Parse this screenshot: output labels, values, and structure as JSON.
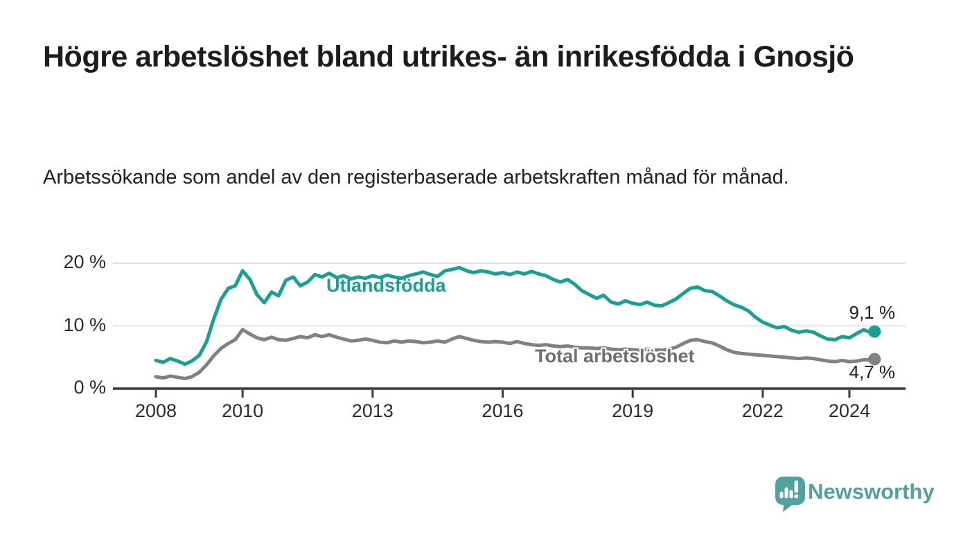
{
  "header": {
    "title": "Högre arbetslöshet bland utrikes- än inrikesfödda i Gnosjö",
    "subtitle": "Arbetssökande som andel av den registerbaserade arbetskraften månad för månad."
  },
  "chart_data": {
    "type": "line",
    "title": "Högre arbetslöshet bland utrikes- än inrikesfödda i Gnosjö",
    "subtitle": "Arbetssökande som andel av den registerbaserade arbetskraften månad för månad.",
    "unit": "%",
    "grid": "horizontal",
    "legend_position": "inline-labels",
    "x_axis": {
      "range": [
        2007.0,
        2025.3
      ],
      "ticks": [
        2008,
        2010,
        2013,
        2016,
        2019,
        2022,
        2024
      ]
    },
    "y_axis": {
      "range": [
        0,
        24
      ],
      "ticks": [
        {
          "value": 20,
          "label": "20 %"
        },
        {
          "value": 10,
          "label": "10 %"
        },
        {
          "value": 0,
          "label": "0 %"
        }
      ]
    },
    "series": [
      {
        "name": "Utlandsfödda",
        "color": "#16A192",
        "label_color": "#16A192",
        "end_label": "9,1 %",
        "end_value": 9.1,
        "points": [
          [
            2008,
            4.5
          ],
          [
            2008.17,
            4.2
          ],
          [
            2008.33,
            4.8
          ],
          [
            2008.5,
            4.4
          ],
          [
            2008.67,
            3.9
          ],
          [
            2008.83,
            4.4
          ],
          [
            2009,
            5.3
          ],
          [
            2009.17,
            7.5
          ],
          [
            2009.33,
            11
          ],
          [
            2009.5,
            14.2
          ],
          [
            2009.67,
            16
          ],
          [
            2009.83,
            16.4
          ],
          [
            2010,
            18.8
          ],
          [
            2010.17,
            17.4
          ],
          [
            2010.33,
            15
          ],
          [
            2010.5,
            13.7
          ],
          [
            2010.67,
            15.4
          ],
          [
            2010.83,
            14.8
          ],
          [
            2011,
            17.3
          ],
          [
            2011.17,
            17.8
          ],
          [
            2011.33,
            16.4
          ],
          [
            2011.5,
            17
          ],
          [
            2011.67,
            18.2
          ],
          [
            2011.83,
            17.8
          ],
          [
            2012,
            18.4
          ],
          [
            2012.17,
            17.7
          ],
          [
            2012.33,
            18
          ],
          [
            2012.5,
            17.5
          ],
          [
            2012.67,
            17.8
          ],
          [
            2012.83,
            17.6
          ],
          [
            2013,
            18
          ],
          [
            2013.17,
            17.7
          ],
          [
            2013.33,
            18.1
          ],
          [
            2013.5,
            17.8
          ],
          [
            2013.67,
            17.6
          ],
          [
            2013.83,
            18
          ],
          [
            2014,
            18.3
          ],
          [
            2014.17,
            18.6
          ],
          [
            2014.33,
            18.2
          ],
          [
            2014.5,
            17.9
          ],
          [
            2014.67,
            18.8
          ],
          [
            2014.83,
            19
          ],
          [
            2015,
            19.3
          ],
          [
            2015.17,
            18.8
          ],
          [
            2015.33,
            18.5
          ],
          [
            2015.5,
            18.8
          ],
          [
            2015.67,
            18.6
          ],
          [
            2015.83,
            18.3
          ],
          [
            2016,
            18.5
          ],
          [
            2016.17,
            18.2
          ],
          [
            2016.33,
            18.6
          ],
          [
            2016.5,
            18.3
          ],
          [
            2016.67,
            18.7
          ],
          [
            2016.83,
            18.3
          ],
          [
            2017,
            18
          ],
          [
            2017.17,
            17.4
          ],
          [
            2017.33,
            17
          ],
          [
            2017.5,
            17.4
          ],
          [
            2017.67,
            16.6
          ],
          [
            2017.83,
            15.6
          ],
          [
            2018,
            15
          ],
          [
            2018.17,
            14.4
          ],
          [
            2018.33,
            14.9
          ],
          [
            2018.5,
            13.8
          ],
          [
            2018.67,
            13.5
          ],
          [
            2018.83,
            14
          ],
          [
            2019,
            13.6
          ],
          [
            2019.17,
            13.4
          ],
          [
            2019.33,
            13.8
          ],
          [
            2019.5,
            13.3
          ],
          [
            2019.67,
            13.2
          ],
          [
            2019.83,
            13.7
          ],
          [
            2020,
            14.3
          ],
          [
            2020.17,
            15.2
          ],
          [
            2020.33,
            16
          ],
          [
            2020.5,
            16.2
          ],
          [
            2020.67,
            15.6
          ],
          [
            2020.83,
            15.5
          ],
          [
            2021,
            14.8
          ],
          [
            2021.17,
            14
          ],
          [
            2021.33,
            13.4
          ],
          [
            2021.5,
            13
          ],
          [
            2021.67,
            12.4
          ],
          [
            2021.83,
            11.4
          ],
          [
            2022,
            10.6
          ],
          [
            2022.17,
            10.1
          ],
          [
            2022.33,
            9.7
          ],
          [
            2022.5,
            9.9
          ],
          [
            2022.67,
            9.3
          ],
          [
            2022.83,
            9
          ],
          [
            2023,
            9.2
          ],
          [
            2023.17,
            9
          ],
          [
            2023.33,
            8.4
          ],
          [
            2023.5,
            7.9
          ],
          [
            2023.67,
            7.8
          ],
          [
            2023.83,
            8.3
          ],
          [
            2024,
            8.1
          ],
          [
            2024.17,
            8.8
          ],
          [
            2024.33,
            9.4
          ],
          [
            2024.5,
            8.9
          ],
          [
            2024.58,
            9.1
          ]
        ]
      },
      {
        "name": "Total arbetslöshet",
        "color": "#818185",
        "label_color": "#6F6F73",
        "end_label": "4,7 %",
        "end_value": 4.7,
        "points": [
          [
            2008,
            1.9
          ],
          [
            2008.17,
            1.7
          ],
          [
            2008.33,
            2
          ],
          [
            2008.5,
            1.8
          ],
          [
            2008.67,
            1.6
          ],
          [
            2008.83,
            1.9
          ],
          [
            2009,
            2.6
          ],
          [
            2009.17,
            3.8
          ],
          [
            2009.33,
            5.2
          ],
          [
            2009.5,
            6.4
          ],
          [
            2009.67,
            7.2
          ],
          [
            2009.83,
            7.8
          ],
          [
            2010,
            9.4
          ],
          [
            2010.17,
            8.7
          ],
          [
            2010.33,
            8.1
          ],
          [
            2010.5,
            7.8
          ],
          [
            2010.67,
            8.2
          ],
          [
            2010.83,
            7.8
          ],
          [
            2011,
            7.7
          ],
          [
            2011.17,
            8
          ],
          [
            2011.33,
            8.3
          ],
          [
            2011.5,
            8.1
          ],
          [
            2011.67,
            8.6
          ],
          [
            2011.83,
            8.3
          ],
          [
            2012,
            8.6
          ],
          [
            2012.17,
            8.2
          ],
          [
            2012.33,
            7.9
          ],
          [
            2012.5,
            7.6
          ],
          [
            2012.67,
            7.7
          ],
          [
            2012.83,
            7.9
          ],
          [
            2013,
            7.7
          ],
          [
            2013.17,
            7.4
          ],
          [
            2013.33,
            7.3
          ],
          [
            2013.5,
            7.6
          ],
          [
            2013.67,
            7.4
          ],
          [
            2013.83,
            7.6
          ],
          [
            2014,
            7.5
          ],
          [
            2014.17,
            7.3
          ],
          [
            2014.33,
            7.4
          ],
          [
            2014.5,
            7.6
          ],
          [
            2014.67,
            7.4
          ],
          [
            2014.83,
            7.9
          ],
          [
            2015,
            8.3
          ],
          [
            2015.17,
            8
          ],
          [
            2015.33,
            7.7
          ],
          [
            2015.5,
            7.5
          ],
          [
            2015.67,
            7.4
          ],
          [
            2015.83,
            7.5
          ],
          [
            2016,
            7.4
          ],
          [
            2016.17,
            7.2
          ],
          [
            2016.33,
            7.5
          ],
          [
            2016.5,
            7.2
          ],
          [
            2016.67,
            7
          ],
          [
            2016.83,
            6.9
          ],
          [
            2017,
            7
          ],
          [
            2017.17,
            6.8
          ],
          [
            2017.33,
            6.7
          ],
          [
            2017.5,
            6.8
          ],
          [
            2017.67,
            6.6
          ],
          [
            2017.83,
            6.5
          ],
          [
            2018,
            6.5
          ],
          [
            2018.17,
            6.4
          ],
          [
            2018.33,
            6.5
          ],
          [
            2018.5,
            6.3
          ],
          [
            2018.67,
            6.2
          ],
          [
            2018.83,
            6.3
          ],
          [
            2019,
            6.2
          ],
          [
            2019.17,
            6.1
          ],
          [
            2019.33,
            6.3
          ],
          [
            2019.5,
            6.2
          ],
          [
            2019.67,
            6.1
          ],
          [
            2019.83,
            6.3
          ],
          [
            2020,
            6.6
          ],
          [
            2020.17,
            7.2
          ],
          [
            2020.33,
            7.7
          ],
          [
            2020.5,
            7.8
          ],
          [
            2020.67,
            7.5
          ],
          [
            2020.83,
            7.3
          ],
          [
            2021,
            6.8
          ],
          [
            2021.17,
            6.2
          ],
          [
            2021.33,
            5.8
          ],
          [
            2021.5,
            5.6
          ],
          [
            2021.67,
            5.5
          ],
          [
            2021.83,
            5.4
          ],
          [
            2022,
            5.3
          ],
          [
            2022.17,
            5.2
          ],
          [
            2022.33,
            5.1
          ],
          [
            2022.5,
            5
          ],
          [
            2022.67,
            4.9
          ],
          [
            2022.83,
            4.8
          ],
          [
            2023,
            4.9
          ],
          [
            2023.17,
            4.8
          ],
          [
            2023.33,
            4.6
          ],
          [
            2023.5,
            4.4
          ],
          [
            2023.67,
            4.3
          ],
          [
            2023.83,
            4.5
          ],
          [
            2024,
            4.3
          ],
          [
            2024.17,
            4.4
          ],
          [
            2024.33,
            4.6
          ],
          [
            2024.5,
            4.6
          ],
          [
            2024.58,
            4.7
          ]
        ]
      }
    ]
  },
  "footer": {
    "brand": "Newsworthy",
    "brand_color": "#4FA39D"
  }
}
